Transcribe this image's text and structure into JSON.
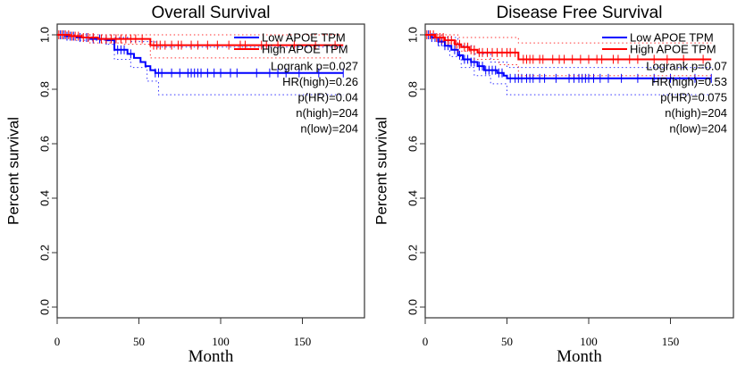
{
  "chart_data": [
    {
      "type": "line",
      "subtype": "kaplan-meier",
      "title": "Overall Survival",
      "xlabel": "Month",
      "ylabel": "Percent survival",
      "xlim": [
        0,
        188
      ],
      "ylim": [
        0,
        1.0
      ],
      "xticks": [
        "0",
        "50",
        "100",
        "150"
      ],
      "yticks": [
        "0.0",
        "0.2",
        "0.4",
        "0.6",
        "0.8",
        "1.0"
      ],
      "grid": false,
      "legend_position": "top-right",
      "series": [
        {
          "name": "Low APOE TPM",
          "color": "#0000ff",
          "steps": [
            [
              0,
              1.0
            ],
            [
              5,
              0.995
            ],
            [
              12,
              0.99
            ],
            [
              20,
              0.985
            ],
            [
              30,
              0.98
            ],
            [
              35,
              0.945
            ],
            [
              43,
              0.93
            ],
            [
              47,
              0.915
            ],
            [
              51,
              0.9
            ],
            [
              54,
              0.885
            ],
            [
              57,
              0.87
            ],
            [
              60,
              0.86
            ],
            [
              175,
              0.86
            ]
          ],
          "ci_upper": [
            [
              0,
              1.0
            ],
            [
              35,
              0.99
            ],
            [
              45,
              0.975
            ],
            [
              60,
              0.955
            ],
            [
              175,
              0.955
            ]
          ],
          "ci_lower": [
            [
              0,
              1.0
            ],
            [
              10,
              0.98
            ],
            [
              30,
              0.965
            ],
            [
              35,
              0.91
            ],
            [
              45,
              0.88
            ],
            [
              55,
              0.83
            ],
            [
              62,
              0.78
            ],
            [
              175,
              0.78
            ]
          ],
          "censor_times": [
            2,
            4,
            6,
            8,
            10,
            14,
            18,
            22,
            26,
            30,
            37,
            39,
            41,
            45,
            60,
            62,
            64,
            70,
            75,
            80,
            82,
            84,
            86,
            88,
            92,
            96,
            100,
            106,
            110,
            122,
            130,
            135,
            140,
            148,
            160,
            175
          ]
        },
        {
          "name": "High APOE TPM",
          "color": "#ff0000",
          "steps": [
            [
              0,
              1.0
            ],
            [
              8,
              0.995
            ],
            [
              15,
              0.99
            ],
            [
              25,
              0.985
            ],
            [
              57,
              0.962
            ],
            [
              175,
              0.962
            ]
          ],
          "ci_upper": [
            [
              0,
              1.0
            ],
            [
              175,
              1.0
            ]
          ],
          "ci_lower": [
            [
              0,
              1.0
            ],
            [
              20,
              0.97
            ],
            [
              40,
              0.965
            ],
            [
              57,
              0.915
            ],
            [
              175,
              0.915
            ]
          ],
          "censor_times": [
            1,
            3,
            5,
            7,
            9,
            11,
            13,
            16,
            19,
            22,
            27,
            30,
            33,
            36,
            39,
            42,
            45,
            48,
            52,
            59,
            61,
            63,
            66,
            70,
            74,
            76,
            82,
            86,
            92,
            98,
            105,
            112,
            115,
            125,
            128,
            135,
            145,
            158,
            170
          ]
        }
      ],
      "annotations": [
        "Logrank p=0.027",
        "HR(high)=0.26",
        "p(HR)=0.04",
        "n(high)=204",
        "n(low)=204"
      ]
    },
    {
      "type": "line",
      "subtype": "kaplan-meier",
      "title": "Disease Free Survival",
      "xlabel": "Month",
      "ylabel": "Percent survival",
      "xlim": [
        0,
        188
      ],
      "ylim": [
        0,
        1.0
      ],
      "xticks": [
        "0",
        "50",
        "100",
        "150"
      ],
      "yticks": [
        "0.0",
        "0.2",
        "0.4",
        "0.6",
        "0.8",
        "1.0"
      ],
      "grid": false,
      "legend_position": "top-right",
      "series": [
        {
          "name": "Low APOE TPM",
          "color": "#0000ff",
          "steps": [
            [
              0,
              1.0
            ],
            [
              4,
              0.99
            ],
            [
              8,
              0.975
            ],
            [
              12,
              0.96
            ],
            [
              16,
              0.945
            ],
            [
              20,
              0.925
            ],
            [
              23,
              0.91
            ],
            [
              28,
              0.9
            ],
            [
              32,
              0.885
            ],
            [
              36,
              0.87
            ],
            [
              44,
              0.86
            ],
            [
              48,
              0.85
            ],
            [
              50,
              0.84
            ],
            [
              175,
              0.84
            ]
          ],
          "ci_upper": [
            [
              0,
              1.0
            ],
            [
              10,
              0.99
            ],
            [
              20,
              0.96
            ],
            [
              30,
              0.93
            ],
            [
              40,
              0.9
            ],
            [
              50,
              0.88
            ],
            [
              175,
              0.88
            ]
          ],
          "ci_lower": [
            [
              0,
              1.0
            ],
            [
              8,
              0.96
            ],
            [
              15,
              0.92
            ],
            [
              22,
              0.88
            ],
            [
              30,
              0.85
            ],
            [
              40,
              0.82
            ],
            [
              50,
              0.78
            ],
            [
              175,
              0.78
            ]
          ],
          "censor_times": [
            2,
            4,
            6,
            8,
            10,
            12,
            14,
            18,
            21,
            24,
            26,
            28,
            30,
            33,
            35,
            37,
            39,
            41,
            43,
            45,
            47,
            52,
            55,
            57,
            59,
            62,
            64,
            66,
            70,
            73,
            80,
            88,
            91,
            94,
            96,
            98,
            100,
            103,
            107,
            112,
            120,
            130,
            140,
            150,
            165,
            175
          ]
        },
        {
          "name": "High APOE TPM",
          "color": "#ff0000",
          "steps": [
            [
              0,
              1.0
            ],
            [
              6,
              0.99
            ],
            [
              12,
              0.98
            ],
            [
              18,
              0.965
            ],
            [
              22,
              0.955
            ],
            [
              27,
              0.945
            ],
            [
              32,
              0.935
            ],
            [
              57,
              0.91
            ],
            [
              175,
              0.91
            ]
          ],
          "ci_upper": [
            [
              0,
              1.0
            ],
            [
              20,
              0.99
            ],
            [
              57,
              0.97
            ],
            [
              175,
              0.97
            ]
          ],
          "ci_lower": [
            [
              0,
              1.0
            ],
            [
              10,
              0.97
            ],
            [
              20,
              0.94
            ],
            [
              30,
              0.91
            ],
            [
              45,
              0.89
            ],
            [
              57,
              0.85
            ],
            [
              175,
              0.85
            ]
          ],
          "censor_times": [
            1,
            3,
            5,
            7,
            9,
            11,
            14,
            16,
            19,
            21,
            24,
            26,
            28,
            30,
            33,
            35,
            38,
            41,
            44,
            47,
            50,
            52,
            55,
            60,
            62,
            64,
            66,
            70,
            72,
            78,
            82,
            85,
            90,
            95,
            100,
            105,
            108,
            115,
            118,
            125,
            130,
            140,
            148,
            158,
            170
          ]
        }
      ],
      "annotations": [
        "Logrank p=0.07",
        "HR(high)=0.53",
        "p(HR)=0.075",
        "n(high)=204",
        "n(low)=204"
      ]
    }
  ]
}
